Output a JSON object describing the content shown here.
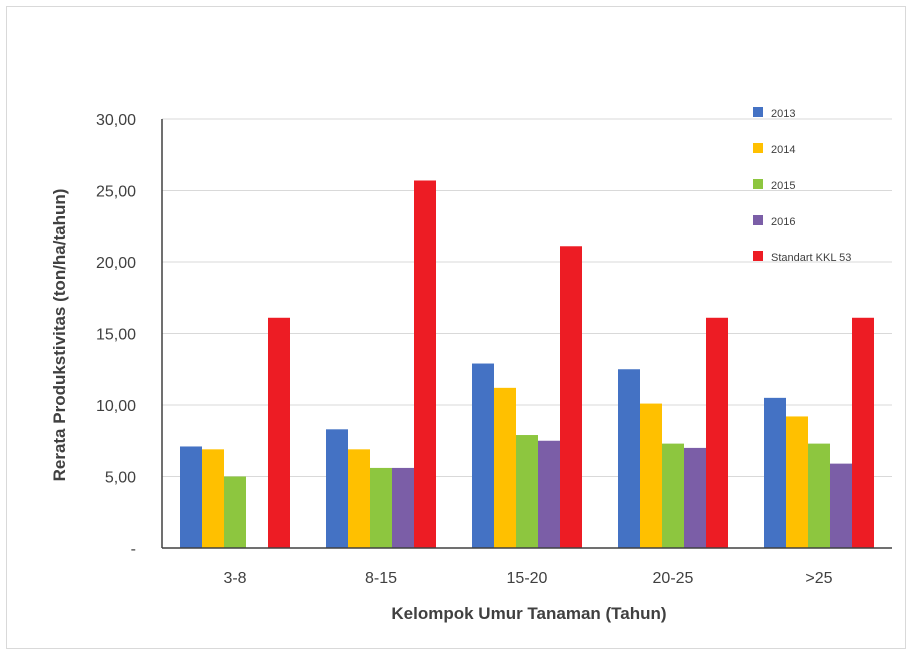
{
  "chart_data": {
    "type": "bar",
    "title": "",
    "xlabel": "Kelompok Umur Tanaman  (Tahun)",
    "ylabel": "Rerata Produkstivitas  (ton/ha/tahun)",
    "ylim": [
      0,
      30
    ],
    "y_ticks": [
      "-",
      "5,00",
      "10,00",
      "15,00",
      "20,00",
      "25,00",
      "30,00"
    ],
    "categories": [
      "3-8",
      "8-15",
      "15-20",
      "20-25",
      ">25"
    ],
    "grid": true,
    "legend_position": "right",
    "series": [
      {
        "name": "2013",
        "color": "#4472c4",
        "values": [
          7.1,
          8.3,
          12.9,
          12.5,
          10.5
        ]
      },
      {
        "name": "2014",
        "color": "#ffc000",
        "values": [
          6.9,
          6.9,
          11.2,
          10.1,
          9.2
        ]
      },
      {
        "name": "2015",
        "color": "#8dc63f",
        "values": [
          5.0,
          5.6,
          7.9,
          7.3,
          7.3
        ]
      },
      {
        "name": "2016",
        "color": "#7b5ea7",
        "values": [
          null,
          5.6,
          7.5,
          7.0,
          5.9
        ]
      },
      {
        "name": "Standart KKL 53",
        "color": "#ed1c24",
        "values": [
          16.1,
          25.7,
          21.1,
          16.1,
          16.1
        ]
      }
    ]
  }
}
